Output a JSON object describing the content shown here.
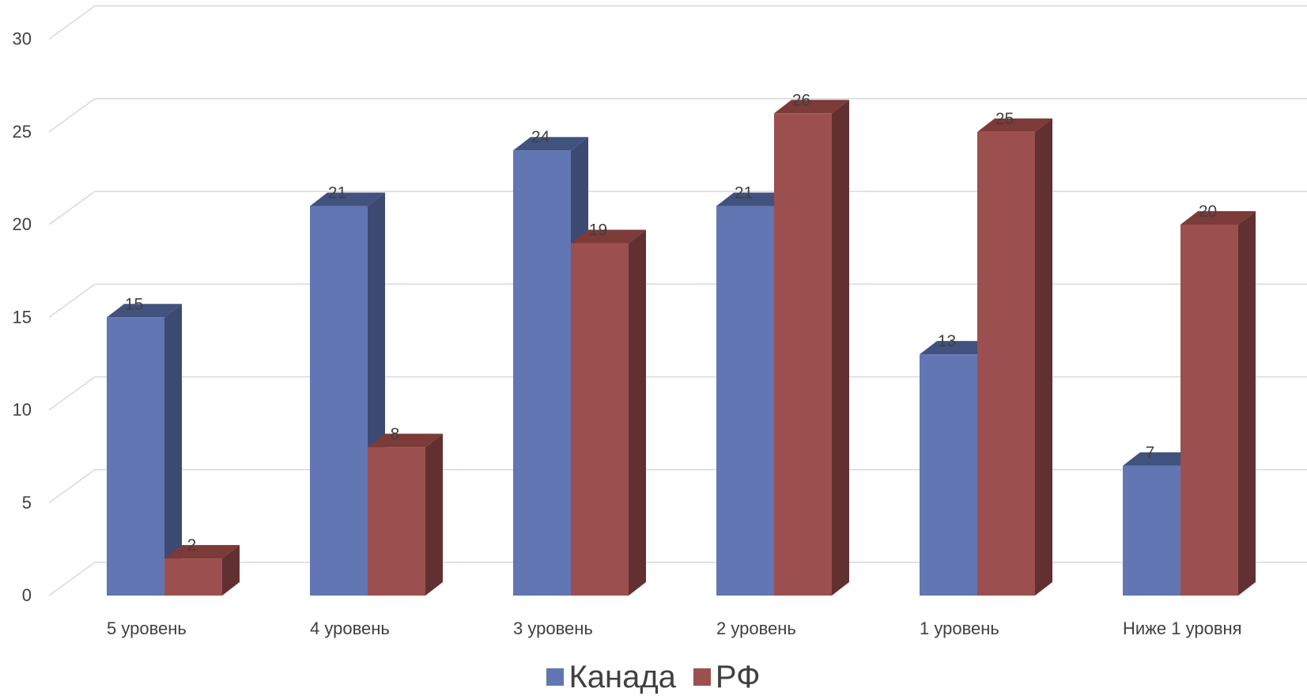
{
  "chart_data": {
    "type": "bar",
    "categories": [
      "5 уровень",
      "4 уровень",
      "3 уровень",
      "2 уровень",
      "1 уровень",
      "Ниже 1 уровня"
    ],
    "series": [
      {
        "name": "Канада",
        "values": [
          15,
          21,
          24,
          21,
          13,
          7
        ],
        "color": "#6176B3",
        "top_color": "#42527F",
        "side_color": "#3D4A72"
      },
      {
        "name": "РФ",
        "values": [
          2,
          8,
          19,
          26,
          25,
          20
        ],
        "color": "#9B4F4E",
        "top_color": "#7C3A39",
        "side_color": "#633032"
      }
    ],
    "yticks": [
      "0",
      "5",
      "10",
      "15",
      "20",
      "25",
      "30"
    ],
    "ylim": [
      0,
      30
    ],
    "grid": true,
    "style": "3d-column",
    "legend_position": "bottom"
  }
}
